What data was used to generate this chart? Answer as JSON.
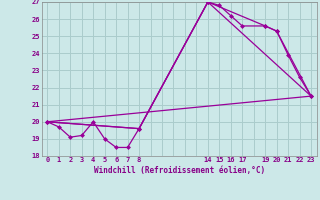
{
  "xlabel": "Windchill (Refroidissement éolien,°C)",
  "bg_color": "#cce8e8",
  "grid_color": "#aacccc",
  "line_color": "#990099",
  "xlim": [
    -0.5,
    23.5
  ],
  "ylim": [
    18,
    27
  ],
  "xticks": [
    0,
    1,
    2,
    3,
    4,
    5,
    6,
    7,
    8,
    14,
    15,
    16,
    17,
    19,
    20,
    21,
    22,
    23
  ],
  "yticks": [
    18,
    19,
    20,
    21,
    22,
    23,
    24,
    25,
    26,
    27
  ],
  "line1_x": [
    0,
    1,
    2,
    3,
    4,
    5,
    6,
    7,
    8,
    14,
    15,
    16,
    17,
    19,
    20,
    21,
    22,
    23
  ],
  "line1_y": [
    20.0,
    19.7,
    19.1,
    19.2,
    20.0,
    19.0,
    18.5,
    18.5,
    19.6,
    27.0,
    26.8,
    26.2,
    25.6,
    25.6,
    25.3,
    23.9,
    22.6,
    21.5
  ],
  "line2_x": [
    0,
    8,
    14,
    19,
    20,
    23
  ],
  "line2_y": [
    20.0,
    19.6,
    27.0,
    25.6,
    25.3,
    21.5
  ],
  "line3_x": [
    0,
    23
  ],
  "line3_y": [
    20.0,
    21.5
  ],
  "line4_x": [
    0,
    8,
    14,
    23
  ],
  "line4_y": [
    20.0,
    19.6,
    27.0,
    21.5
  ]
}
